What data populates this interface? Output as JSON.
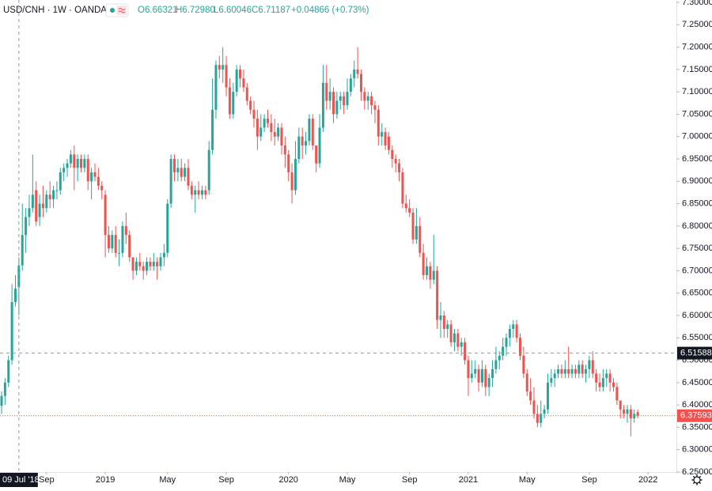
{
  "header": {
    "symbol": "USD/CNH · 1W · OANDA",
    "open": "O6.66321",
    "high": "H6.72980",
    "low": "L6.60046",
    "close": "C6.71187",
    "change": "+0.04866 (+0.73%)"
  },
  "chart_data": {
    "type": "candlestick",
    "up_color": "#26a69a",
    "down_color": "#ef5350",
    "ylim": [
      6.25,
      7.3
    ],
    "yticks": [
      {
        "value": 6.25,
        "label": "6.25000"
      },
      {
        "value": 6.3,
        "label": "6.30000"
      },
      {
        "value": 6.35,
        "label": "6.35000"
      },
      {
        "value": 6.4,
        "label": "6.40000"
      },
      {
        "value": 6.45,
        "label": "6.45000"
      },
      {
        "value": 6.5,
        "label": "6.50000"
      },
      {
        "value": 6.55,
        "label": "6.55000"
      },
      {
        "value": 6.6,
        "label": "6.60000"
      },
      {
        "value": 6.65,
        "label": "6.65000"
      },
      {
        "value": 6.7,
        "label": "6.70000"
      },
      {
        "value": 6.75,
        "label": "6.75000"
      },
      {
        "value": 6.8,
        "label": "6.80000"
      },
      {
        "value": 6.85,
        "label": "6.85000"
      },
      {
        "value": 6.9,
        "label": "6.90000"
      },
      {
        "value": 6.95,
        "label": "6.95000"
      },
      {
        "value": 7.0,
        "label": "7.00000"
      },
      {
        "value": 7.05,
        "label": "7.05000"
      },
      {
        "value": 7.1,
        "label": "7.10000"
      },
      {
        "value": 7.15,
        "label": "7.15000"
      },
      {
        "value": 7.2,
        "label": "7.20000"
      },
      {
        "value": 7.25,
        "label": "7.25000"
      },
      {
        "value": 7.3,
        "label": "7.30000"
      }
    ],
    "xticks": [
      {
        "value": 13,
        "label": "Sep"
      },
      {
        "value": 30,
        "label": "2019"
      },
      {
        "value": 48,
        "label": "May"
      },
      {
        "value": 65,
        "label": "Sep"
      },
      {
        "value": 83,
        "label": "2020"
      },
      {
        "value": 100,
        "label": "May"
      },
      {
        "value": 118,
        "label": "Sep"
      },
      {
        "value": 135,
        "label": "2021"
      },
      {
        "value": 152,
        "label": "May"
      },
      {
        "value": 170,
        "label": "Sep"
      },
      {
        "value": 187,
        "label": "2022"
      }
    ],
    "crosshair": {
      "bar": 5,
      "label": "09 Jul '18",
      "price": 6.51588
    },
    "last_price": 6.37593,
    "ohlc": [
      [
        6.398,
        6.43,
        6.38,
        6.42
      ],
      [
        6.42,
        6.46,
        6.4,
        6.45
      ],
      [
        6.45,
        6.51,
        6.44,
        6.5
      ],
      [
        6.5,
        6.67,
        6.49,
        6.63
      ],
      [
        6.63,
        6.69,
        6.62,
        6.66
      ],
      [
        6.66321,
        6.7298,
        6.60046,
        6.71187
      ],
      [
        6.712,
        6.85,
        6.7,
        6.78
      ],
      [
        6.78,
        6.84,
        6.74,
        6.82
      ],
      [
        6.82,
        6.87,
        6.8,
        6.84
      ],
      [
        6.84,
        6.96,
        6.83,
        6.87
      ],
      [
        6.88,
        6.9,
        6.8,
        6.81
      ],
      [
        6.82,
        6.87,
        6.8,
        6.85
      ],
      [
        6.85,
        6.89,
        6.82,
        6.84
      ],
      [
        6.84,
        6.88,
        6.83,
        6.87
      ],
      [
        6.87,
        6.9,
        6.84,
        6.86
      ],
      [
        6.86,
        6.89,
        6.84,
        6.88
      ],
      [
        6.88,
        6.9,
        6.86,
        6.88
      ],
      [
        6.88,
        6.93,
        6.87,
        6.92
      ],
      [
        6.92,
        6.94,
        6.9,
        6.93
      ],
      [
        6.93,
        6.95,
        6.91,
        6.94
      ],
      [
        6.94,
        6.97,
        6.93,
        6.96
      ],
      [
        6.96,
        6.98,
        6.88,
        6.93
      ],
      [
        6.93,
        6.96,
        6.9,
        6.95
      ],
      [
        6.95,
        6.96,
        6.92,
        6.93
      ],
      [
        6.93,
        6.96,
        6.92,
        6.95
      ],
      [
        6.95,
        6.96,
        6.88,
        6.9
      ],
      [
        6.9,
        6.93,
        6.86,
        6.92
      ],
      [
        6.92,
        6.94,
        6.9,
        6.91
      ],
      [
        6.91,
        6.93,
        6.88,
        6.89
      ],
      [
        6.89,
        6.9,
        6.86,
        6.88
      ],
      [
        6.87,
        6.88,
        6.73,
        6.78
      ],
      [
        6.78,
        6.8,
        6.74,
        6.75
      ],
      [
        6.75,
        6.79,
        6.74,
        6.78
      ],
      [
        6.78,
        6.8,
        6.73,
        6.74
      ],
      [
        6.74,
        6.77,
        6.71,
        6.74
      ],
      [
        6.74,
        6.81,
        6.73,
        6.8
      ],
      [
        6.8,
        6.83,
        6.76,
        6.78
      ],
      [
        6.78,
        6.79,
        6.72,
        6.73
      ],
      [
        6.73,
        6.73,
        6.68,
        6.7
      ],
      [
        6.7,
        6.73,
        6.69,
        6.72
      ],
      [
        6.72,
        6.74,
        6.7,
        6.71
      ],
      [
        6.71,
        6.72,
        6.68,
        6.7
      ],
      [
        6.7,
        6.73,
        6.69,
        6.72
      ],
      [
        6.72,
        6.73,
        6.7,
        6.71
      ],
      [
        6.71,
        6.74,
        6.7,
        6.72
      ],
      [
        6.72,
        6.73,
        6.68,
        6.71
      ],
      [
        6.71,
        6.74,
        6.7,
        6.73
      ],
      [
        6.73,
        6.76,
        6.71,
        6.74
      ],
      [
        6.74,
        6.86,
        6.73,
        6.85
      ],
      [
        6.85,
        6.96,
        6.84,
        6.95
      ],
      [
        6.95,
        6.96,
        6.9,
        6.92
      ],
      [
        6.92,
        6.95,
        6.9,
        6.93
      ],
      [
        6.93,
        6.95,
        6.9,
        6.91
      ],
      [
        6.91,
        6.94,
        6.9,
        6.93
      ],
      [
        6.93,
        6.95,
        6.88,
        6.89
      ],
      [
        6.89,
        6.9,
        6.86,
        6.87
      ],
      [
        6.87,
        6.89,
        6.83,
        6.88
      ],
      [
        6.88,
        6.9,
        6.86,
        6.87
      ],
      [
        6.87,
        6.89,
        6.86,
        6.88
      ],
      [
        6.88,
        6.89,
        6.86,
        6.87
      ],
      [
        6.88,
        6.99,
        6.87,
        6.97
      ],
      [
        6.97,
        7.13,
        6.96,
        7.06
      ],
      [
        7.06,
        7.17,
        7.04,
        7.16
      ],
      [
        7.16,
        7.18,
        7.13,
        7.15
      ],
      [
        7.15,
        7.2,
        7.12,
        7.16
      ],
      [
        7.16,
        7.18,
        7.09,
        7.11
      ],
      [
        7.11,
        7.13,
        7.04,
        7.05
      ],
      [
        7.05,
        7.12,
        7.04,
        7.1
      ],
      [
        7.1,
        7.16,
        7.09,
        7.15
      ],
      [
        7.15,
        7.16,
        7.11,
        7.13
      ],
      [
        7.13,
        7.15,
        7.1,
        7.11
      ],
      [
        7.11,
        7.12,
        7.07,
        7.08
      ],
      [
        7.08,
        7.09,
        7.05,
        7.06
      ],
      [
        7.06,
        7.08,
        7.02,
        7.04
      ],
      [
        7.04,
        7.06,
        6.97,
        7.0
      ],
      [
        7.0,
        7.05,
        6.99,
        7.02
      ],
      [
        7.02,
        7.05,
        7.01,
        7.04
      ],
      [
        7.04,
        7.06,
        7.02,
        7.03
      ],
      [
        7.03,
        7.05,
        6.99,
        7.01
      ],
      [
        7.01,
        7.04,
        6.98,
        7.0
      ],
      [
        7.0,
        7.03,
        6.99,
        7.02
      ],
      [
        7.02,
        7.03,
        6.96,
        6.98
      ],
      [
        6.98,
        7.0,
        6.93,
        6.96
      ],
      [
        6.96,
        6.97,
        6.9,
        6.92
      ],
      [
        6.92,
        6.94,
        6.85,
        6.88
      ],
      [
        6.88,
        6.99,
        6.87,
        6.95
      ],
      [
        6.95,
        7.02,
        6.94,
        7.0
      ],
      [
        7.0,
        7.02,
        6.95,
        6.98
      ],
      [
        6.98,
        7.01,
        6.96,
        6.99
      ],
      [
        6.99,
        7.05,
        6.98,
        7.04
      ],
      [
        7.04,
        7.05,
        6.97,
        6.98
      ],
      [
        6.98,
        6.98,
        6.92,
        6.94
      ],
      [
        6.94,
        7.05,
        6.93,
        7.02
      ],
      [
        7.02,
        7.16,
        7.01,
        7.12
      ],
      [
        7.12,
        7.16,
        7.06,
        7.08
      ],
      [
        7.08,
        7.13,
        7.06,
        7.1
      ],
      [
        7.1,
        7.11,
        7.03,
        7.05
      ],
      [
        7.05,
        7.1,
        7.04,
        7.08
      ],
      [
        7.08,
        7.1,
        7.06,
        7.09
      ],
      [
        7.09,
        7.1,
        7.05,
        7.07
      ],
      [
        7.07,
        7.13,
        7.06,
        7.1
      ],
      [
        7.1,
        7.14,
        7.09,
        7.13
      ],
      [
        7.13,
        7.17,
        7.11,
        7.15
      ],
      [
        7.15,
        7.2,
        7.13,
        7.14
      ],
      [
        7.14,
        7.15,
        7.08,
        7.1
      ],
      [
        7.1,
        7.11,
        7.06,
        7.08
      ],
      [
        7.08,
        7.1,
        7.06,
        7.09
      ],
      [
        7.09,
        7.1,
        7.05,
        7.07
      ],
      [
        7.07,
        7.08,
        7.03,
        7.06
      ],
      [
        7.06,
        7.07,
        6.98,
        7.0
      ],
      [
        7.0,
        7.03,
        6.98,
        7.01
      ],
      [
        7.01,
        7.02,
        6.97,
        6.98
      ],
      [
        7.0,
        7.01,
        6.96,
        6.97
      ],
      [
        6.97,
        6.98,
        6.93,
        6.95
      ],
      [
        6.95,
        6.96,
        6.92,
        6.94
      ],
      [
        6.94,
        6.95,
        6.9,
        6.92
      ],
      [
        6.92,
        6.93,
        6.84,
        6.85
      ],
      [
        6.85,
        6.87,
        6.83,
        6.84
      ],
      [
        6.84,
        6.86,
        6.82,
        6.83
      ],
      [
        6.83,
        6.84,
        6.76,
        6.77
      ],
      [
        6.77,
        6.84,
        6.76,
        6.8
      ],
      [
        6.8,
        6.82,
        6.73,
        6.74
      ],
      [
        6.74,
        6.76,
        6.68,
        6.69
      ],
      [
        6.69,
        6.73,
        6.68,
        6.71
      ],
      [
        6.71,
        6.72,
        6.66,
        6.68
      ],
      [
        6.68,
        6.78,
        6.67,
        6.7
      ],
      [
        6.7,
        6.71,
        6.57,
        6.59
      ],
      [
        6.59,
        6.63,
        6.55,
        6.6
      ],
      [
        6.6,
        6.61,
        6.55,
        6.57
      ],
      [
        6.57,
        6.59,
        6.55,
        6.58
      ],
      [
        6.58,
        6.59,
        6.53,
        6.54
      ],
      [
        6.54,
        6.57,
        6.52,
        6.56
      ],
      [
        6.56,
        6.57,
        6.52,
        6.53
      ],
      [
        6.53,
        6.55,
        6.51,
        6.54
      ],
      [
        6.54,
        6.55,
        6.49,
        6.5
      ],
      [
        6.5,
        6.51,
        6.42,
        6.46
      ],
      [
        6.46,
        6.5,
        6.45,
        6.47
      ],
      [
        6.47,
        6.5,
        6.46,
        6.48
      ],
      [
        6.48,
        6.49,
        6.43,
        6.45
      ],
      [
        6.45,
        6.5,
        6.44,
        6.48
      ],
      [
        6.48,
        6.49,
        6.42,
        6.44
      ],
      [
        6.44,
        6.47,
        6.42,
        6.46
      ],
      [
        6.46,
        6.5,
        6.44,
        6.48
      ],
      [
        6.48,
        6.53,
        6.47,
        6.5
      ],
      [
        6.5,
        6.52,
        6.48,
        6.51
      ],
      [
        6.51,
        6.55,
        6.5,
        6.53
      ],
      [
        6.53,
        6.56,
        6.51,
        6.55
      ],
      [
        6.55,
        6.58,
        6.53,
        6.57
      ],
      [
        6.57,
        6.59,
        6.55,
        6.58
      ],
      [
        6.58,
        6.59,
        6.54,
        6.55
      ],
      [
        6.55,
        6.56,
        6.5,
        6.51
      ],
      [
        6.51,
        6.53,
        6.46,
        6.47
      ],
      [
        6.47,
        6.48,
        6.42,
        6.43
      ],
      [
        6.43,
        6.46,
        6.4,
        6.41
      ],
      [
        6.41,
        6.44,
        6.37,
        6.38
      ],
      [
        6.38,
        6.4,
        6.35,
        6.36
      ],
      [
        6.36,
        6.41,
        6.35,
        6.38
      ],
      [
        6.38,
        6.4,
        6.37,
        6.39
      ],
      [
        6.39,
        6.47,
        6.38,
        6.45
      ],
      [
        6.45,
        6.48,
        6.44,
        6.46
      ],
      [
        6.46,
        6.48,
        6.44,
        6.47
      ],
      [
        6.47,
        6.49,
        6.46,
        6.48
      ],
      [
        6.48,
        6.49,
        6.46,
        6.47
      ],
      [
        6.47,
        6.5,
        6.46,
        6.48
      ],
      [
        6.48,
        6.53,
        6.46,
        6.47
      ],
      [
        6.47,
        6.49,
        6.46,
        6.48
      ],
      [
        6.48,
        6.49,
        6.46,
        6.47
      ],
      [
        6.47,
        6.5,
        6.46,
        6.49
      ],
      [
        6.49,
        6.5,
        6.46,
        6.47
      ],
      [
        6.47,
        6.49,
        6.45,
        6.48
      ],
      [
        6.48,
        6.51,
        6.46,
        6.5
      ],
      [
        6.5,
        6.52,
        6.46,
        6.47
      ],
      [
        6.47,
        6.48,
        6.43,
        6.45
      ],
      [
        6.45,
        6.47,
        6.43,
        6.44
      ],
      [
        6.44,
        6.48,
        6.43,
        6.46
      ],
      [
        6.46,
        6.48,
        6.44,
        6.47
      ],
      [
        6.47,
        6.48,
        6.43,
        6.45
      ],
      [
        6.45,
        6.46,
        6.43,
        6.44
      ],
      [
        6.44,
        6.45,
        6.4,
        6.41
      ],
      [
        6.41,
        6.41,
        6.37,
        6.39
      ],
      [
        6.39,
        6.4,
        6.37,
        6.38
      ],
      [
        6.38,
        6.4,
        6.36,
        6.39
      ],
      [
        6.39,
        6.4,
        6.33,
        6.37
      ],
      [
        6.37,
        6.39,
        6.36,
        6.38
      ],
      [
        6.384,
        6.39,
        6.37,
        6.37593
      ]
    ]
  }
}
